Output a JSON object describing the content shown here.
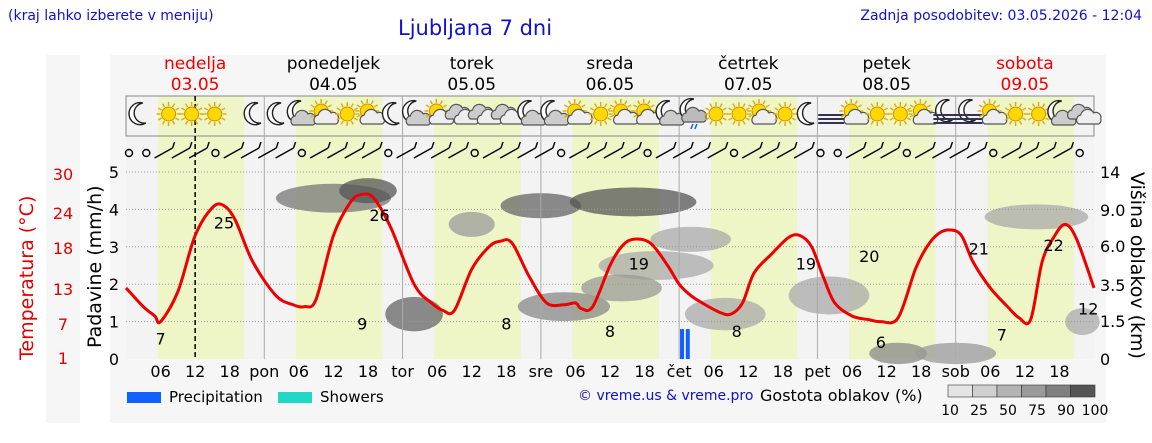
{
  "header": {
    "hint": "(kraj lahko izberete v meniju)",
    "title": "Ljubljana 7 dni",
    "updated": "Zadnja posodobitev: 03.05.2026 - 12:04"
  },
  "footer": {
    "copyright": "© vreme.us & vreme.pro",
    "density_label": "Gostota oblakov (%)"
  },
  "colors": {
    "temperature": "#ee0000",
    "day_band": "#eef5c7",
    "night_band": "#f3f3f3",
    "precipitation": "#1060ff",
    "showers": "#20d8c8",
    "weekend": "#ee0000",
    "weekday": "#000000"
  },
  "chart_data": {
    "type": "line",
    "days": [
      {
        "name": "nedelja",
        "date": "03.05",
        "weekend": true,
        "short": ""
      },
      {
        "name": "ponedeljek",
        "date": "04.05",
        "weekend": false,
        "short": "pon"
      },
      {
        "name": "torek",
        "date": "05.05",
        "weekend": false,
        "short": "tor"
      },
      {
        "name": "sreda",
        "date": "06.05",
        "weekend": false,
        "short": "sre"
      },
      {
        "name": "četrtek",
        "date": "07.05",
        "weekend": false,
        "short": "čet"
      },
      {
        "name": "petek",
        "date": "08.05",
        "weekend": false,
        "short": "pet"
      },
      {
        "name": "sobota",
        "date": "09.05",
        "weekend": true,
        "short": "sob"
      }
    ],
    "hour_ticks": [
      "06",
      "12",
      "18"
    ],
    "x_range_hours": [
      0,
      168
    ],
    "current_time_hour": 12,
    "left_axis": {
      "label": "Padavine (mm/h)",
      "ticks": [
        "0",
        "1",
        "2",
        "3",
        "4",
        "5"
      ],
      "range": [
        0,
        5
      ]
    },
    "temperature_axis": {
      "label": "Temperatura (°C)",
      "ticks": [
        "1",
        "7",
        "13",
        "18",
        "24",
        "30"
      ]
    },
    "right_axis": {
      "label": "Višina oblakov (km)",
      "ticks": [
        "0",
        "1.5",
        "3.5",
        "6.0",
        "9.0",
        "14"
      ]
    },
    "temperature_series": {
      "hours": [
        0,
        3,
        5,
        6,
        9,
        12,
        15,
        17,
        19,
        22,
        26,
        29,
        31,
        33,
        36,
        39,
        41,
        43,
        46,
        50,
        53,
        55,
        57,
        60,
        63,
        65,
        67,
        70,
        73,
        76,
        78,
        79,
        81,
        84,
        86,
        88,
        91,
        94,
        96,
        98,
        100,
        103,
        105,
        107,
        109,
        112,
        115,
        117,
        119,
        121,
        123,
        126,
        129,
        131,
        134,
        137,
        139,
        141,
        143,
        145,
        147,
        150,
        153,
        155,
        157,
        159,
        161,
        163,
        165,
        168
      ],
      "values_unit": "precip-axis",
      "values": [
        1.9,
        1.4,
        1.15,
        1.0,
        1.8,
        3.3,
        4.05,
        4.1,
        3.7,
        2.6,
        1.7,
        1.45,
        1.4,
        1.6,
        3.3,
        4.2,
        4.4,
        4.3,
        3.5,
        2.0,
        1.5,
        1.3,
        1.3,
        2.4,
        3.0,
        3.15,
        3.1,
        2.2,
        1.5,
        1.45,
        1.5,
        1.35,
        1.4,
        2.5,
        3.0,
        3.2,
        3.1,
        2.5,
        2.0,
        1.7,
        1.5,
        1.25,
        1.2,
        1.5,
        2.3,
        2.8,
        3.25,
        3.3,
        3.0,
        2.2,
        1.5,
        1.15,
        1.05,
        1.0,
        1.1,
        2.4,
        3.0,
        3.35,
        3.45,
        3.3,
        2.6,
        1.9,
        1.4,
        1.1,
        1.05,
        2.6,
        3.25,
        3.6,
        3.2,
        1.9
      ]
    },
    "temperature_labels": [
      {
        "hour": 6,
        "value": "7",
        "y": 0.55
      },
      {
        "hour": 17,
        "value": "25",
        "y": 3.65
      },
      {
        "hour": 41,
        "value": "9",
        "y": 0.95
      },
      {
        "hour": 44,
        "value": "26",
        "y": 3.85
      },
      {
        "hour": 66,
        "value": "8",
        "y": 0.95
      },
      {
        "hour": 89,
        "value": "19",
        "y": 2.55
      },
      {
        "hour": 84,
        "value": "8",
        "y": 0.75
      },
      {
        "hour": 118,
        "value": "19",
        "y": 2.55
      },
      {
        "hour": 106,
        "value": "8",
        "y": 0.75
      },
      {
        "hour": 129,
        "value": "20",
        "y": 2.75
      },
      {
        "hour": 131,
        "value": "6",
        "y": 0.45
      },
      {
        "hour": 148,
        "value": "21",
        "y": 2.95
      },
      {
        "hour": 152,
        "value": "7",
        "y": 0.65
      },
      {
        "hour": 161,
        "value": "22",
        "y": 3.05
      },
      {
        "hour": 167,
        "value": "12",
        "y": 1.35
      }
    ],
    "weather_icons": [
      {
        "hour": 1,
        "type": "moon"
      },
      {
        "hour": 6,
        "type": "sun"
      },
      {
        "hour": 10,
        "type": "sun"
      },
      {
        "hour": 14,
        "type": "sun"
      },
      {
        "hour": 21,
        "type": "moon"
      },
      {
        "hour": 25,
        "type": "moon"
      },
      {
        "hour": 29,
        "type": "moon-cloud"
      },
      {
        "hour": 33,
        "type": "sun-cloud"
      },
      {
        "hour": 37,
        "type": "sun"
      },
      {
        "hour": 41,
        "type": "sun-cloud"
      },
      {
        "hour": 45,
        "type": "moon"
      },
      {
        "hour": 49,
        "type": "moon-cloud"
      },
      {
        "hour": 53,
        "type": "sun-cloud"
      },
      {
        "hour": 57,
        "type": "cloud"
      },
      {
        "hour": 61,
        "type": "cloud"
      },
      {
        "hour": 65,
        "type": "cloud"
      },
      {
        "hour": 69,
        "type": "moon-cloud"
      },
      {
        "hour": 73,
        "type": "moon-cloud"
      },
      {
        "hour": 77,
        "type": "sun-cloud"
      },
      {
        "hour": 81,
        "type": "sun"
      },
      {
        "hour": 85,
        "type": "sun-cloud"
      },
      {
        "hour": 89,
        "type": "sun-cloud"
      },
      {
        "hour": 93,
        "type": "moon-cloud"
      },
      {
        "hour": 97,
        "type": "moon-rain"
      },
      {
        "hour": 101,
        "type": "sun"
      },
      {
        "hour": 105,
        "type": "sun"
      },
      {
        "hour": 109,
        "type": "sun-cloud"
      },
      {
        "hour": 113,
        "type": "sun"
      },
      {
        "hour": 117,
        "type": "moon"
      },
      {
        "hour": 121,
        "type": "fog"
      },
      {
        "hour": 125,
        "type": "sun-cloud"
      },
      {
        "hour": 129,
        "type": "sun"
      },
      {
        "hour": 133,
        "type": "sun"
      },
      {
        "hour": 137,
        "type": "sun-cloud"
      },
      {
        "hour": 141,
        "type": "moon-fog"
      },
      {
        "hour": 145,
        "type": "moon-fog"
      },
      {
        "hour": 149,
        "type": "sun-cloud"
      },
      {
        "hour": 153,
        "type": "sun"
      },
      {
        "hour": 157,
        "type": "sun"
      },
      {
        "hour": 161,
        "type": "moon-cloud"
      },
      {
        "hour": 165,
        "type": "cloud"
      }
    ],
    "precipitation": [
      {
        "hour": 96.5,
        "value": 0.8,
        "kind": "precipitation"
      },
      {
        "hour": 97.5,
        "value": 0.8,
        "kind": "precipitation"
      }
    ],
    "legend": [
      {
        "label": "Precipitation",
        "color": "#1060ff"
      },
      {
        "label": "Showers",
        "color": "#20d8c8"
      }
    ],
    "density_scale": [
      "10",
      "25",
      "50",
      "75",
      "90",
      "100"
    ],
    "grid": true
  }
}
